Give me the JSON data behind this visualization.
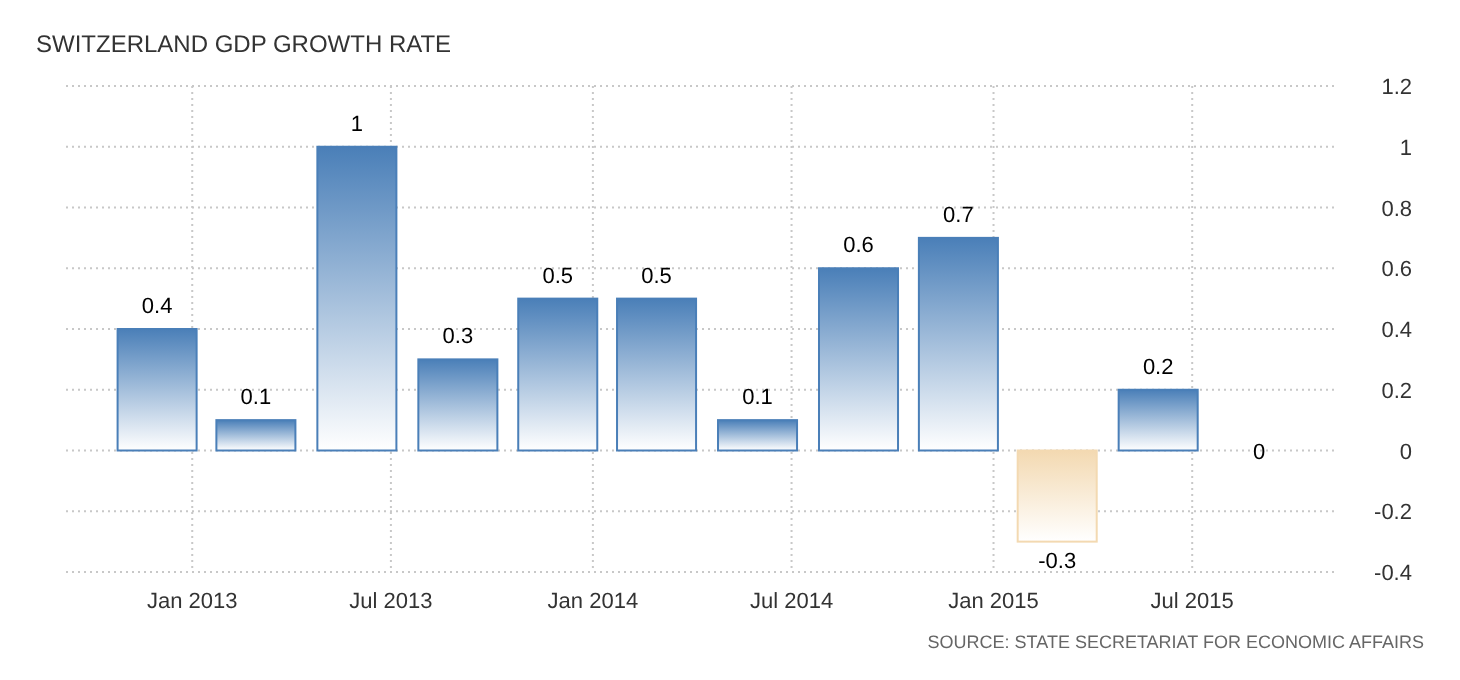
{
  "chart_data": {
    "type": "bar",
    "title": "SWITZERLAND GDP GROWTH RATE",
    "x": [
      "2012-11-30",
      "2013-02-28",
      "2013-05-31",
      "2013-08-31",
      "2013-11-30",
      "2014-02-28",
      "2014-05-31",
      "2014-08-31",
      "2014-11-30",
      "2015-02-28",
      "2015-05-31",
      "2015-08-31"
    ],
    "values": [
      0.4,
      0.1,
      1,
      0.3,
      0.5,
      0.5,
      0.1,
      0.6,
      0.7,
      -0.3,
      0.2,
      0
    ],
    "colors": [
      "#4a7fb8",
      "#4a7fb8",
      "#4a7fb8",
      "#4a7fb8",
      "#4a7fb8",
      "#4a7fb8",
      "#4a7fb8",
      "#4a7fb8",
      "#4a7fb8",
      "#f3d9b1",
      "#4a7fb8",
      "#4a7fb8"
    ],
    "data_labels": true,
    "xlim": [
      "2012-09-08",
      "2015-11-09"
    ],
    "xticks": [
      {
        "value": "2013-01-01",
        "label": "Jan 2013"
      },
      {
        "value": "2013-07-01",
        "label": "Jul 2013"
      },
      {
        "value": "2014-01-01",
        "label": "Jan 2014"
      },
      {
        "value": "2014-07-01",
        "label": "Jul 2014"
      },
      {
        "value": "2015-01-01",
        "label": "Jan 2015"
      },
      {
        "value": "2015-07-01",
        "label": "Jul 2015"
      }
    ],
    "ylim": [
      -0.4,
      1.2
    ],
    "yticks": [
      -0.4,
      -0.2,
      0,
      0.2,
      0.4,
      0.6,
      0.8,
      1,
      1.2
    ],
    "grid": true,
    "annotations": [
      "SOURCE: STATE SECRETARIAT FOR ECONOMIC AFFAIRS"
    ]
  }
}
